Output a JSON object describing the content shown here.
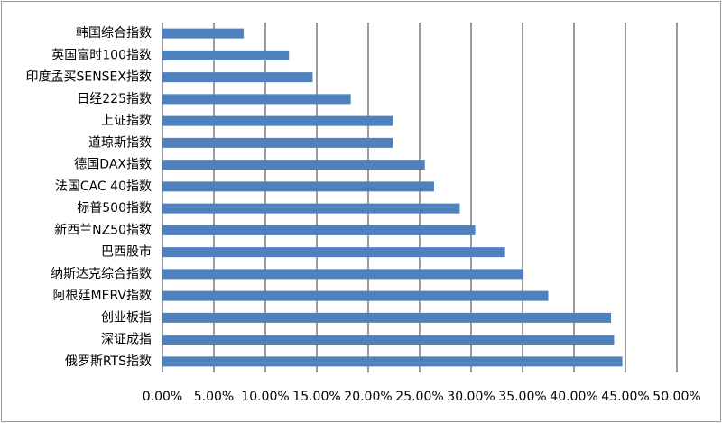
{
  "chart_data": {
    "type": "bar",
    "orientation": "horizontal",
    "categories": [
      "韩国综合指数",
      "英国富时100指数",
      "印度孟买SENSEX指数",
      "日经225指数",
      "上证指数",
      "道琼斯指数",
      "德国DAX指数",
      "法国CAC 40指数",
      "标普500指数",
      "新西兰NZ50指数",
      "巴西股市",
      "纳斯达克综合指数",
      "阿根廷MERV指数",
      "创业板指",
      "深证成指",
      "俄罗斯RTS指数"
    ],
    "values": [
      7.9,
      12.3,
      14.6,
      18.3,
      22.4,
      22.4,
      25.5,
      26.4,
      28.9,
      30.4,
      33.3,
      35.1,
      37.5,
      43.6,
      43.9,
      44.7
    ],
    "color": "#4f81bd",
    "xlim": [
      0,
      50
    ],
    "xticks": [
      {
        "value": 0,
        "label": "0.00%"
      },
      {
        "value": 5,
        "label": "5.00%"
      },
      {
        "value": 10,
        "label": "10.00%"
      },
      {
        "value": 15,
        "label": "15.00%"
      },
      {
        "value": 20,
        "label": "20.00%"
      },
      {
        "value": 25,
        "label": "25.00%"
      },
      {
        "value": 30,
        "label": "30.00%"
      },
      {
        "value": 35,
        "label": "35.00%"
      },
      {
        "value": 40,
        "label": "40.00%"
      },
      {
        "value": 45,
        "label": "45.00%"
      },
      {
        "value": 50,
        "label": "50.00%"
      }
    ],
    "grid": true
  }
}
